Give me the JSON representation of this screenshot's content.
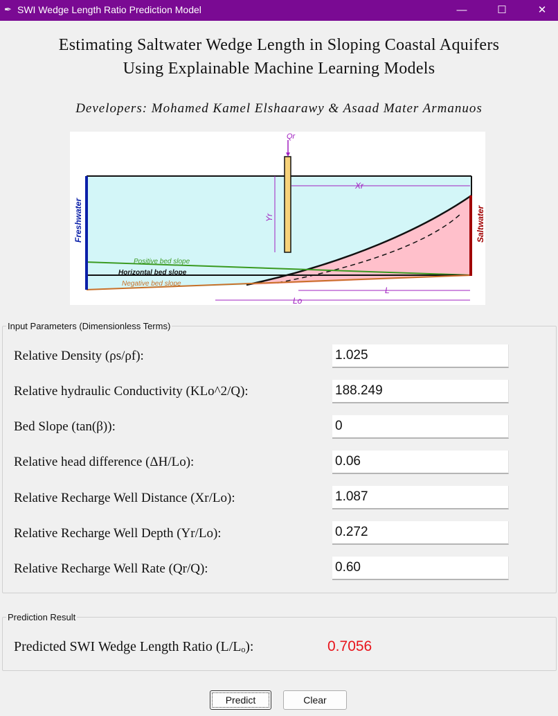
{
  "window": {
    "title": "SWI Wedge Length Ratio Prediction Model",
    "controls": {
      "minimize": "—",
      "maximize": "☐",
      "close": "✕"
    }
  },
  "header": {
    "title_line1": "Estimating Saltwater Wedge Length in Sloping Coastal Aquifers",
    "title_line2": "Using Explainable Machine Learning Models",
    "developers": "Developers: Mohamed Kamel Elshaarawy & Asaad Mater Armanuos"
  },
  "diagram": {
    "labels": {
      "qr": "Qr",
      "xr": "Xr",
      "yr": "Yr",
      "freshwater": "Freshwater",
      "saltwater": "Saltwater",
      "positive_slope": "Positive bed slope",
      "horizontal_slope": "Horizontal bed slope",
      "negative_slope": "Negative bed slope",
      "l": "L",
      "lo": "Lo"
    },
    "colors": {
      "freshwater_fill": "#d3f6f8",
      "saltwater_fill": "#ffc0cb",
      "well": "#f7d27a",
      "dimension": "#a020c0",
      "freshwater_boundary": "#0a1fa8",
      "saltwater_boundary": "#a00000",
      "positive_slope": "#3a9a20",
      "negative_slope": "#c87028"
    }
  },
  "inputs": {
    "group_title": "Input Parameters (Dimensionless Terms)",
    "fields": [
      {
        "label": "Relative Density (ρs/ρf):",
        "value": "1.025"
      },
      {
        "label": "Relative hydraulic Conductivity (KLo^2/Q):",
        "value": "188.249"
      },
      {
        "label": "Bed Slope (tan(β)):",
        "value": "0"
      },
      {
        "label": "Relative head difference (ΔH/Lo):",
        "value": "0.06"
      },
      {
        "label": "Relative Recharge Well Distance (Xr/Lo):",
        "value": "1.087"
      },
      {
        "label": "Relative Recharge Well Depth (Yr/Lo):",
        "value": "0.272"
      },
      {
        "label": "Relative Recharge Well Rate (Qr/Q):",
        "value": "0.60"
      }
    ]
  },
  "result": {
    "group_title": "Prediction Result",
    "label": "Predicted SWI Wedge Length Ratio (L/Lₒ):",
    "value": "0.7056",
    "value_color": "#e8141b"
  },
  "buttons": {
    "predict": "Predict",
    "clear": "Clear"
  }
}
